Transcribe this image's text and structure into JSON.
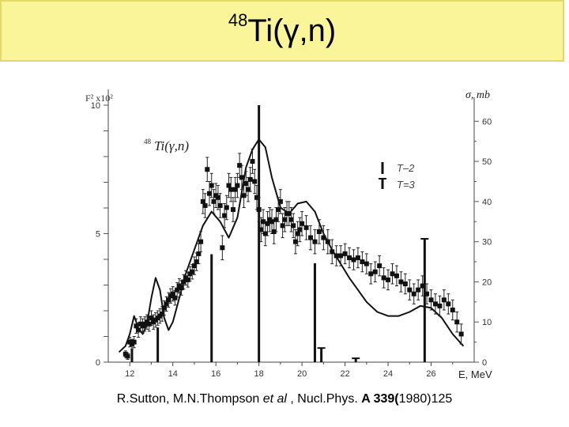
{
  "slide": {
    "title_mass": "48",
    "title_reaction": "Ti(γ,n)",
    "reference": {
      "authors": "R.Sutton, M.N.Thompson ",
      "etal": "et al",
      "journal": " , Nucl.Phys. ",
      "volume": "A 339(",
      "year_page": "1980)125"
    }
  },
  "chart_data": {
    "type": "scatter",
    "inset_label_mass": "48",
    "inset_label": "Ti(γ,n)",
    "left_axis_label": "F² x10²",
    "right_axis_label": "σ, mb",
    "x_axis_label": "E, MeV",
    "xlim": [
      11,
      28
    ],
    "x_ticks": [
      "12",
      "14",
      "16",
      "18",
      "20",
      "22",
      "24",
      "26"
    ],
    "left_ylim": [
      0,
      10
    ],
    "left_ticks": [
      "0",
      "5",
      "10"
    ],
    "right_ylim": [
      0,
      64
    ],
    "right_ticks": [
      "0",
      "10",
      "20",
      "30",
      "40",
      "50",
      "60"
    ],
    "legend": [
      {
        "name": "T–2",
        "marker": "bar"
      },
      {
        "name": "T=3",
        "marker": "tbar"
      }
    ],
    "curve": {
      "x": [
        11.5,
        11.8,
        12.0,
        12.2,
        12.4,
        12.6,
        12.8,
        13.0,
        13.2,
        13.4,
        13.6,
        13.8,
        14.0,
        14.3,
        14.6,
        15.0,
        15.4,
        15.8,
        16.2,
        16.6,
        17.0,
        17.4,
        17.7,
        18.0,
        18.3,
        18.6,
        19.0,
        19.4,
        19.8,
        20.2,
        20.6,
        21.0,
        21.4,
        21.8,
        22.2,
        22.6,
        23.0,
        23.5,
        24.0,
        24.5,
        25.0,
        25.5,
        26.0,
        26.5,
        27.0,
        27.5
      ],
      "y": [
        2.5,
        4.0,
        7.0,
        11.5,
        8.5,
        7.0,
        9.5,
        16.0,
        21.0,
        18.0,
        11.0,
        8.0,
        10.0,
        16.0,
        22.0,
        28.0,
        34.0,
        37.5,
        35.0,
        31.0,
        36.0,
        48.5,
        53.0,
        55.5,
        53.5,
        46.0,
        38.5,
        37.0,
        39.5,
        40.0,
        37.5,
        32.0,
        28.0,
        24.5,
        21.0,
        18.0,
        15.0,
        12.5,
        11.5,
        11.5,
        12.5,
        14.0,
        13.5,
        11.0,
        7.0,
        4.0
      ]
    },
    "points": {
      "x": [
        11.8,
        11.9,
        12.0,
        12.1,
        12.2,
        12.3,
        12.4,
        12.5,
        12.6,
        12.7,
        12.8,
        12.9,
        13.0,
        13.1,
        13.2,
        13.3,
        13.4,
        13.5,
        13.6,
        13.7,
        13.8,
        13.9,
        14.0,
        14.1,
        14.2,
        14.3,
        14.4,
        14.5,
        14.6,
        14.7,
        14.8,
        14.9,
        15.0,
        15.1,
        15.2,
        15.3,
        15.4,
        15.5,
        15.6,
        15.7,
        15.8,
        15.9,
        16.0,
        16.1,
        16.2,
        16.3,
        16.4,
        16.5,
        16.6,
        16.7,
        16.8,
        16.9,
        17.0,
        17.1,
        17.2,
        17.3,
        17.4,
        17.5,
        17.6,
        17.7,
        17.8,
        17.9,
        18.0,
        18.1,
        18.2,
        18.3,
        18.4,
        18.5,
        18.6,
        18.7,
        18.8,
        18.9,
        19.0,
        19.1,
        19.2,
        19.3,
        19.4,
        19.5,
        19.6,
        19.7,
        19.8,
        19.9,
        20.0,
        20.2,
        20.4,
        20.6,
        20.8,
        21.0,
        21.2,
        21.4,
        21.6,
        21.8,
        22.0,
        22.2,
        22.4,
        22.6,
        22.8,
        23.0,
        23.2,
        23.4,
        23.6,
        23.8,
        24.0,
        24.2,
        24.4,
        24.6,
        24.8,
        25.0,
        25.2,
        25.4,
        25.6,
        25.8,
        26.0,
        26.2,
        26.4,
        26.6,
        26.8,
        27.0,
        27.2,
        27.4
      ],
      "y": [
        2.0,
        1.5,
        5.0,
        4.5,
        5.0,
        9.0,
        8.0,
        9.5,
        9.0,
        9.5,
        10.0,
        9.5,
        11.0,
        10.0,
        10.5,
        11.0,
        11.5,
        12.0,
        13.5,
        14.5,
        15.5,
        16.5,
        17.0,
        16.0,
        18.0,
        19.0,
        18.5,
        20.0,
        21.0,
        20.5,
        22.0,
        22.5,
        24.0,
        25.0,
        27.0,
        30.0,
        40.0,
        39.0,
        48.0,
        42.0,
        44.0,
        40.0,
        41.5,
        41.0,
        39.0,
        28.5,
        36.5,
        38.5,
        44.0,
        43.0,
        38.0,
        43.0,
        44.0,
        49.0,
        46.0,
        41.5,
        44.5,
        43.0,
        45.5,
        50.0,
        45.0,
        41.0,
        38.0,
        33.0,
        35.0,
        32.0,
        34.5,
        35.5,
        35.0,
        32.5,
        35.5,
        38.0,
        40.0,
        34.0,
        35.5,
        37.0,
        37.0,
        35.5,
        34.0,
        30.0,
        32.0,
        33.0,
        34.5,
        33.5,
        31.0,
        30.0,
        32.5,
        31.0,
        30.0,
        27.5,
        26.5,
        26.5,
        27.0,
        26.0,
        25.5,
        26.0,
        25.0,
        24.5,
        22.0,
        22.5,
        24.0,
        21.0,
        20.5,
        22.0,
        21.5,
        20.0,
        19.5,
        18.0,
        17.0,
        18.0,
        19.0,
        17.0,
        15.5,
        14.5,
        14.0,
        15.5,
        14.5,
        13.0,
        10.0,
        7.0
      ],
      "err": [
        0.8,
        0.8,
        1.2,
        1.2,
        1.4,
        1.8,
        1.8,
        1.8,
        1.8,
        1.8,
        1.8,
        1.8,
        1.8,
        1.8,
        1.8,
        1.8,
        1.8,
        1.8,
        1.8,
        1.8,
        1.8,
        1.8,
        1.8,
        1.8,
        1.8,
        1.8,
        1.8,
        1.8,
        1.8,
        1.8,
        1.8,
        1.8,
        2.2,
        2.2,
        2.5,
        2.5,
        3.0,
        3.0,
        3.0,
        3.0,
        3.0,
        3.0,
        3.0,
        3.0,
        3.0,
        3.0,
        3.0,
        3.0,
        3.0,
        3.0,
        3.0,
        3.0,
        3.0,
        3.0,
        3.0,
        3.0,
        3.0,
        3.0,
        3.0,
        3.0,
        3.0,
        3.0,
        3.0,
        3.0,
        3.0,
        3.0,
        3.0,
        3.0,
        3.0,
        3.0,
        3.0,
        3.0,
        3.0,
        3.0,
        3.0,
        3.0,
        3.0,
        3.0,
        3.0,
        3.0,
        3.0,
        3.0,
        3.0,
        3.0,
        3.0,
        3.0,
        3.0,
        3.0,
        3.0,
        3.0,
        2.5,
        2.5,
        2.5,
        2.5,
        2.5,
        2.5,
        2.5,
        2.5,
        2.5,
        2.5,
        2.5,
        2.5,
        2.5,
        2.5,
        2.5,
        2.5,
        2.5,
        2.5,
        2.5,
        2.5,
        2.5,
        2.5,
        2.5,
        2.5,
        2.5,
        2.5,
        2.5,
        2.5,
        2.5,
        2.5
      ]
    },
    "strength_bars": [
      {
        "x": 12.1,
        "f": 0.5,
        "type": "T-2"
      },
      {
        "x": 13.3,
        "f": 1.35,
        "type": "T-2"
      },
      {
        "x": 15.8,
        "f": 4.2,
        "type": "T-2"
      },
      {
        "x": 18.0,
        "f": 10.0,
        "type": "T-2"
      },
      {
        "x": 20.6,
        "f": 3.85,
        "type": "T-2"
      },
      {
        "x": 20.9,
        "f": 0.55,
        "type": "T-3"
      },
      {
        "x": 22.5,
        "f": 0.15,
        "type": "T-3"
      },
      {
        "x": 25.7,
        "f": 4.8,
        "type": "T-3"
      }
    ]
  }
}
